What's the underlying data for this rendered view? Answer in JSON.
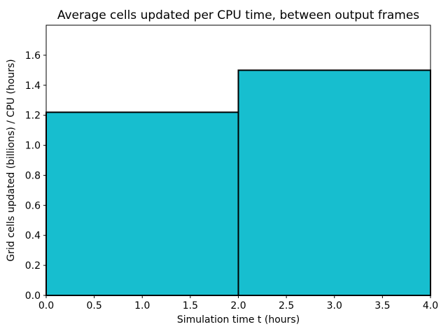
{
  "figure": {
    "background": "#ffffff"
  },
  "chart_data": {
    "type": "bar",
    "title": "Average cells updated per CPU time, between output frames",
    "xlabel": "Simulation time t (hours)",
    "ylabel": "Grid cells updated (billions) / CPU (hours)",
    "bars": [
      {
        "x_start": 0.0,
        "x_end": 2.0,
        "value": 1.22
      },
      {
        "x_start": 2.0,
        "x_end": 4.0,
        "value": 1.5
      }
    ],
    "xlim": [
      0.0,
      4.0
    ],
    "ylim": [
      0.0,
      1.8
    ],
    "xticks": [
      0.0,
      0.5,
      1.0,
      1.5,
      2.0,
      2.5,
      3.0,
      3.5,
      4.0
    ],
    "yticks": [
      0.0,
      0.2,
      0.4,
      0.6,
      0.8,
      1.0,
      1.2,
      1.4,
      1.6
    ],
    "tick_decimals": 1,
    "bar_color": "#17becf",
    "bar_edge_color": "#000000",
    "bar_edge_width": 2,
    "grid": false,
    "legend_position": "none"
  }
}
